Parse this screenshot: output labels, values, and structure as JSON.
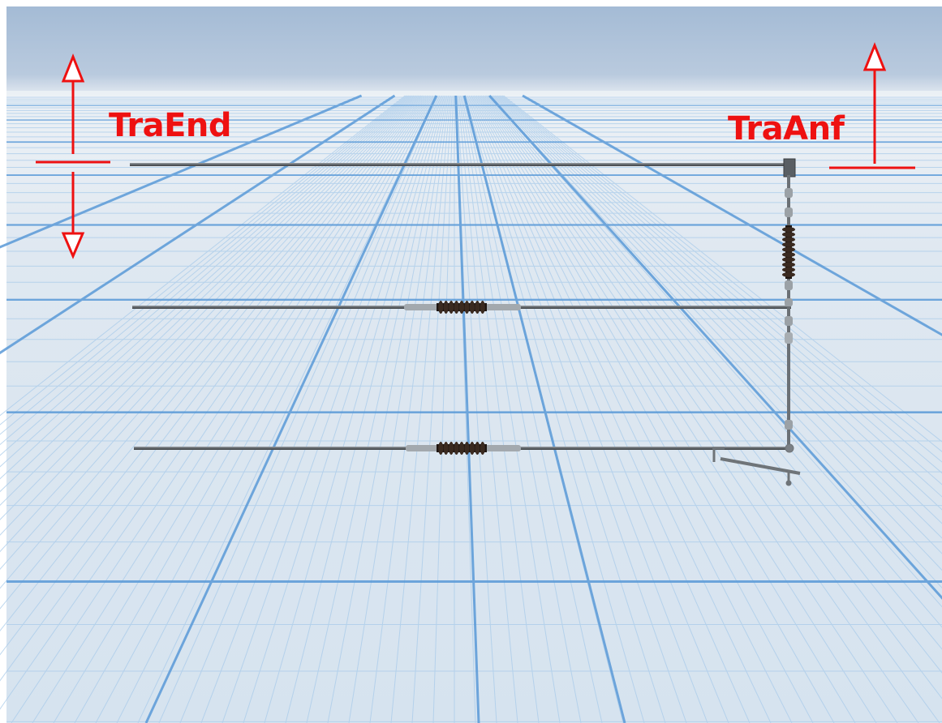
{
  "labels": {
    "left": "TraEnd",
    "right": "TraAnf"
  },
  "colors": {
    "annotation": "#ee1111",
    "sky_top": "#a6bdd6",
    "floor": "#dfe8f1",
    "grid_major": "#5a9ad8",
    "grid_minor": "#a9cbea",
    "wire": "#6f7478",
    "insulator": "#3a2a20"
  },
  "icons": [
    "arrow-up-icon",
    "arrow-down-icon"
  ]
}
